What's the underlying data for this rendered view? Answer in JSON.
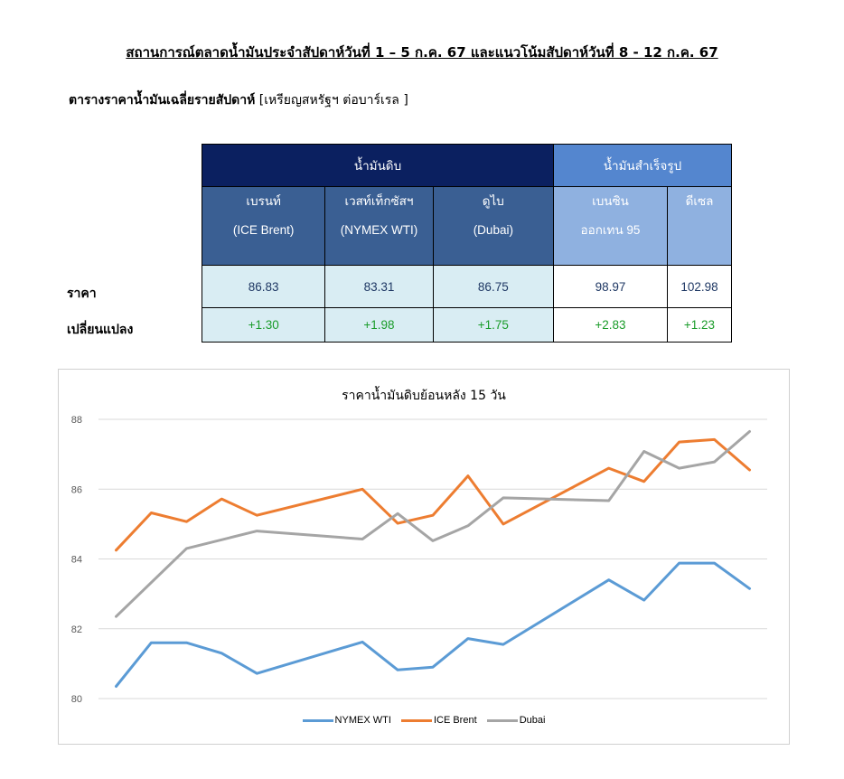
{
  "header": {
    "title": "สถานการณ์ตลาดน้ำมันประจำสัปดาห์วันที่ 1 – 5 ก.ค. 67 และแนวโน้มสัปดาห์วันที่ 8 - 12 ก.ค. 67",
    "table_title": "ตารางราคาน้ำมันเฉลี่ยรายสัปดาห์",
    "table_unit": "[เหรียญสหรัฐฯ ต่อบาร์เรล ]"
  },
  "table": {
    "group_crude": "น้ำมันดิบ",
    "group_refined": "น้ำมันสำเร็จรูป",
    "columns": [
      {
        "line1": "เบรนท์",
        "line2": "(ICE Brent)",
        "price": "86.83",
        "change": "+1.30"
      },
      {
        "line1": "เวสท์เท็กซัสฯ",
        "line2": "(NYMEX WTI)",
        "price": "83.31",
        "change": "+1.98"
      },
      {
        "line1": "ดูไบ",
        "line2": "(Dubai)",
        "price": "86.75",
        "change": "+1.75"
      },
      {
        "line1": "เบนซิน",
        "line2": "ออกเทน  95",
        "price": "98.97",
        "change": "+2.83"
      },
      {
        "line1": "ดีเซล",
        "line2": "",
        "price": "102.98",
        "change": "+1.23"
      }
    ],
    "row_price": "ราคา",
    "row_change": "เปลี่ยนแปลง"
  },
  "colors": {
    "wti": "#5b9bd5",
    "brent": "#ed7d31",
    "dubai": "#a5a5a5"
  },
  "chart_data": {
    "type": "line",
    "title": "ราคาน้ำมันดิบย้อนหลัง 15 วัน",
    "x": [
      1,
      2,
      3,
      4,
      5,
      6,
      7,
      8,
      9,
      10,
      11,
      12,
      13,
      14,
      15,
      16,
      17,
      18,
      19
    ],
    "ylim": [
      80,
      88
    ],
    "yticks": [
      "80",
      "82",
      "84",
      "86",
      "88"
    ],
    "grid": true,
    "legend": "bottom",
    "series": [
      {
        "name": "NYMEX WTI",
        "values": [
          80.35,
          81.6,
          81.6,
          81.3,
          80.72,
          null,
          null,
          81.62,
          80.82,
          80.9,
          81.72,
          81.55,
          null,
          null,
          83.4,
          82.82,
          83.88,
          83.88,
          83.15
        ]
      },
      {
        "name": "ICE Brent",
        "values": [
          84.25,
          85.32,
          85.07,
          85.72,
          85.25,
          null,
          null,
          86.0,
          85.02,
          85.25,
          86.38,
          85.0,
          null,
          null,
          86.6,
          86.22,
          87.35,
          87.42,
          86.55
        ]
      },
      {
        "name": "Dubai",
        "values": [
          82.35,
          null,
          84.3,
          null,
          84.8,
          null,
          null,
          84.57,
          85.3,
          84.52,
          84.95,
          85.75,
          null,
          null,
          85.67,
          87.08,
          86.6,
          86.78,
          87.65
        ]
      }
    ]
  }
}
